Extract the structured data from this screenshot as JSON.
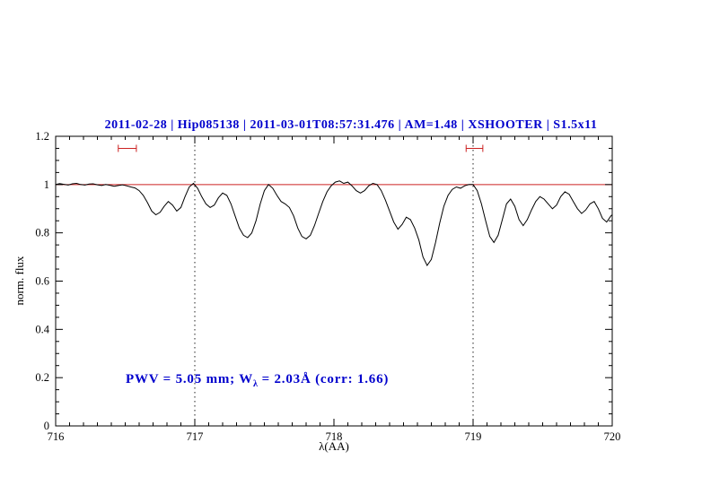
{
  "chart_data": {
    "type": "line",
    "title": "2011-02-28 | Hip085138 | 2011-03-01T08:57:31.476 | AM=1.48 | XSHOOTER | S1.5x11",
    "xlabel": "λ(AA)",
    "ylabel": "norm. flux",
    "xlim": [
      716,
      720
    ],
    "ylim": [
      0,
      1.2
    ],
    "x_tick_values": [
      716,
      717,
      718,
      719,
      720
    ],
    "x_tick_labels": [
      "716",
      "717",
      "718",
      "719",
      "720"
    ],
    "x_minor_step": 0.1,
    "y_tick_values": [
      0,
      0.2,
      0.4,
      0.6,
      0.8,
      1,
      1.2
    ],
    "y_tick_labels": [
      "0",
      "0.2",
      "0.4",
      "0.6",
      "0.8",
      "1",
      "1.2"
    ],
    "y_minor_step": 0.05,
    "grid": false,
    "continuum_level": 1.0,
    "dotted_guides_x": [
      717,
      719
    ],
    "markers": [
      {
        "x1": 716.45,
        "x2": 716.58,
        "y": 1.15
      },
      {
        "x1": 718.95,
        "x2": 719.07,
        "y": 1.15
      }
    ],
    "annotation": {
      "pre": "PWV = 5.05 mm; W",
      "sub": "λ",
      "post": " = 2.03Å (corr: 1.66)"
    },
    "series": [
      {
        "name": "spectrum",
        "x_start": 716.0,
        "x_step": 0.03,
        "y": [
          1.0,
          1.004,
          1.001,
          0.998,
          1.003,
          1.005,
          1.0,
          0.998,
          1.002,
          1.003,
          0.999,
          0.996,
          1.0,
          0.997,
          0.993,
          0.996,
          0.999,
          0.995,
          0.99,
          0.986,
          0.975,
          0.955,
          0.925,
          0.89,
          0.875,
          0.885,
          0.91,
          0.93,
          0.915,
          0.89,
          0.905,
          0.95,
          0.99,
          1.005,
          0.985,
          0.95,
          0.92,
          0.905,
          0.915,
          0.945,
          0.965,
          0.955,
          0.92,
          0.87,
          0.82,
          0.79,
          0.78,
          0.8,
          0.85,
          0.92,
          0.975,
          1.0,
          0.985,
          0.955,
          0.93,
          0.92,
          0.905,
          0.87,
          0.82,
          0.785,
          0.775,
          0.79,
          0.83,
          0.88,
          0.93,
          0.97,
          0.995,
          1.01,
          1.015,
          1.005,
          1.01,
          0.995,
          0.975,
          0.965,
          0.975,
          0.995,
          1.005,
          1.0,
          0.975,
          0.935,
          0.89,
          0.845,
          0.815,
          0.835,
          0.865,
          0.855,
          0.82,
          0.77,
          0.7,
          0.665,
          0.69,
          0.76,
          0.84,
          0.91,
          0.955,
          0.98,
          0.99,
          0.985,
          0.995,
          1.0,
          1.0,
          0.975,
          0.92,
          0.85,
          0.785,
          0.76,
          0.79,
          0.855,
          0.92,
          0.94,
          0.91,
          0.855,
          0.83,
          0.855,
          0.895,
          0.93,
          0.95,
          0.94,
          0.92,
          0.9,
          0.915,
          0.95,
          0.97,
          0.96,
          0.93,
          0.9,
          0.88,
          0.895,
          0.92,
          0.93,
          0.9,
          0.86,
          0.845,
          0.87,
          0.875
        ]
      }
    ],
    "colors": {
      "spectrum": "#000000",
      "continuum": "#cc2222",
      "markers": "#cc2222",
      "guides": "#222222",
      "axis": "#000000",
      "title": "#0000cd",
      "annotation": "#0000cd"
    }
  }
}
